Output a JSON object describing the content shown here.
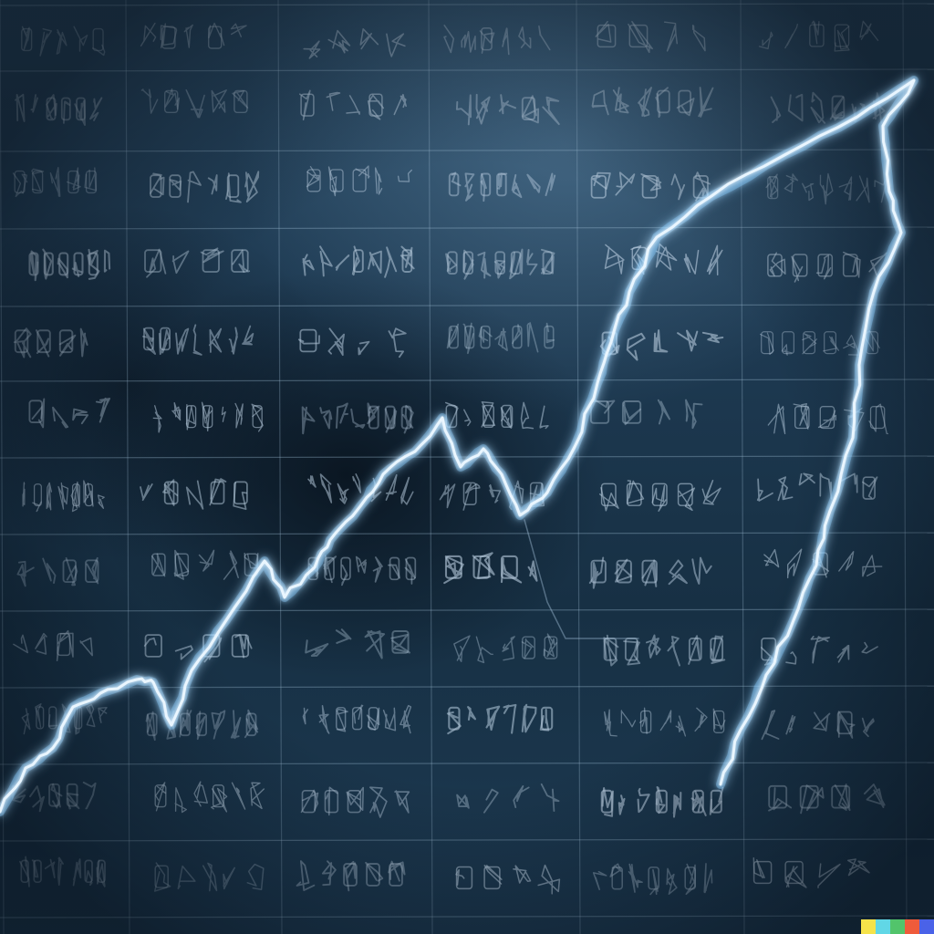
{
  "colors": {
    "glow_line": "#eaf6ff",
    "glow_halo": "#7fc8ff",
    "grid_line": "#9fbcd4",
    "glyph_ink": "#b4c8da",
    "watermark_strip": [
      "#f6e34a",
      "#61d7e6",
      "#52c46b",
      "#ef5b3b",
      "#4a62e8"
    ]
  },
  "icons": [
    "lightning-trend-line",
    "ledger-grid",
    "shadowed-face",
    "color-strip-watermark"
  ]
}
